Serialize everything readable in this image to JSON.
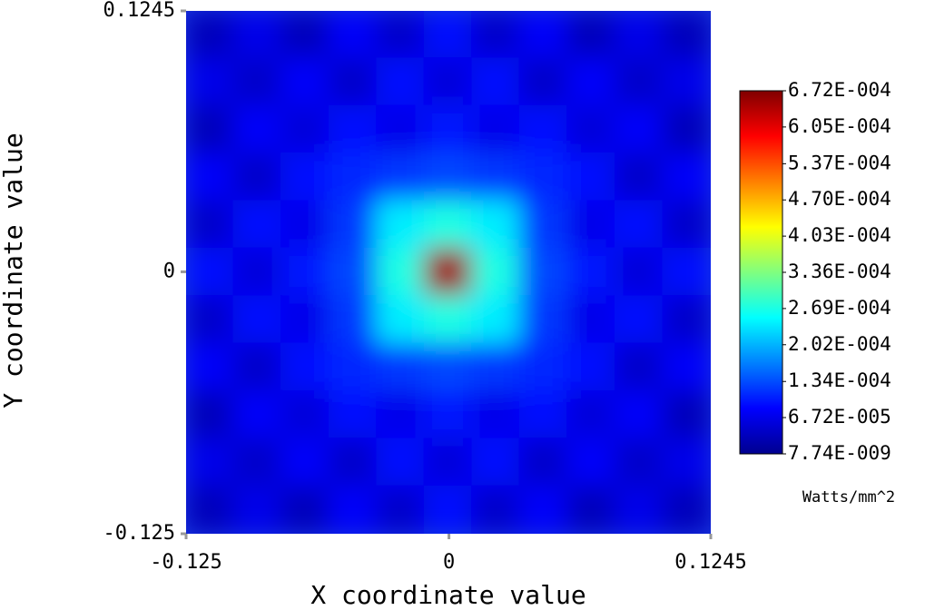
{
  "chart_data": {
    "type": "heatmap",
    "x_label": "X coordinate value",
    "y_label": "Y coordinate value",
    "colorbar_label": "Watts/mm^2",
    "xlim": [
      -0.125,
      0.1245
    ],
    "ylim": [
      -0.125,
      0.1245
    ],
    "xticks": [
      -0.125,
      0,
      0.1245
    ],
    "yticks": [
      -0.125,
      0,
      0.1245
    ],
    "zlim": [
      7.74e-09,
      0.000672
    ],
    "zticks": [
      {
        "value": 7.74e-09,
        "label": "7.74E-009"
      },
      {
        "value": 6.72e-05,
        "label": "6.72E-005"
      },
      {
        "value": 0.000134,
        "label": "1.34E-004"
      },
      {
        "value": 0.000202,
        "label": "2.02E-004"
      },
      {
        "value": 0.000269,
        "label": "2.69E-004"
      },
      {
        "value": 0.000336,
        "label": "3.36E-004"
      },
      {
        "value": 0.000403,
        "label": "4.03E-004"
      },
      {
        "value": 0.00047,
        "label": "4.70E-004"
      },
      {
        "value": 0.000537,
        "label": "5.37E-004"
      },
      {
        "value": 0.000605,
        "label": "6.05E-004"
      },
      {
        "value": 0.000672,
        "label": "6.72E-004"
      }
    ],
    "z": [
      [
        4e-05,
        7e-05,
        4e-05,
        8e-05,
        5e-05,
        9e-05,
        5e-05,
        8e-05,
        4e-05,
        7e-05,
        4e-05
      ],
      [
        7e-05,
        5e-05,
        8e-05,
        5e-05,
        9e-05,
        6e-05,
        9e-05,
        5e-05,
        8e-05,
        5e-05,
        7e-05
      ],
      [
        4e-05,
        8e-05,
        6e-05,
        9e-05,
        7e-05,
        0.0001,
        7e-05,
        9e-05,
        6e-05,
        8e-05,
        4e-05
      ],
      [
        8e-05,
        5e-05,
        9e-05,
        0.00011,
        0.00012,
        0.00013,
        0.00012,
        0.00011,
        9e-05,
        5e-05,
        8e-05
      ],
      [
        5e-05,
        9e-05,
        7e-05,
        0.00012,
        0.00024,
        0.00027,
        0.00024,
        0.00012,
        7e-05,
        9e-05,
        5e-05
      ],
      [
        9e-05,
        6e-05,
        0.0001,
        0.00013,
        0.00027,
        0.00065,
        0.00027,
        0.00013,
        0.0001,
        6e-05,
        9e-05
      ],
      [
        5e-05,
        9e-05,
        7e-05,
        0.00012,
        0.00024,
        0.00027,
        0.00024,
        0.00012,
        7e-05,
        9e-05,
        5e-05
      ],
      [
        8e-05,
        5e-05,
        9e-05,
        0.00011,
        0.00012,
        0.00013,
        0.00012,
        0.00011,
        9e-05,
        5e-05,
        8e-05
      ],
      [
        4e-05,
        8e-05,
        6e-05,
        9e-05,
        7e-05,
        0.0001,
        7e-05,
        9e-05,
        6e-05,
        8e-05,
        4e-05
      ],
      [
        7e-05,
        5e-05,
        8e-05,
        5e-05,
        9e-05,
        6e-05,
        9e-05,
        5e-05,
        8e-05,
        5e-05,
        7e-05
      ],
      [
        4e-05,
        7e-05,
        4e-05,
        8e-05,
        5e-05,
        9e-05,
        5e-05,
        8e-05,
        4e-05,
        7e-05,
        4e-05
      ]
    ]
  }
}
